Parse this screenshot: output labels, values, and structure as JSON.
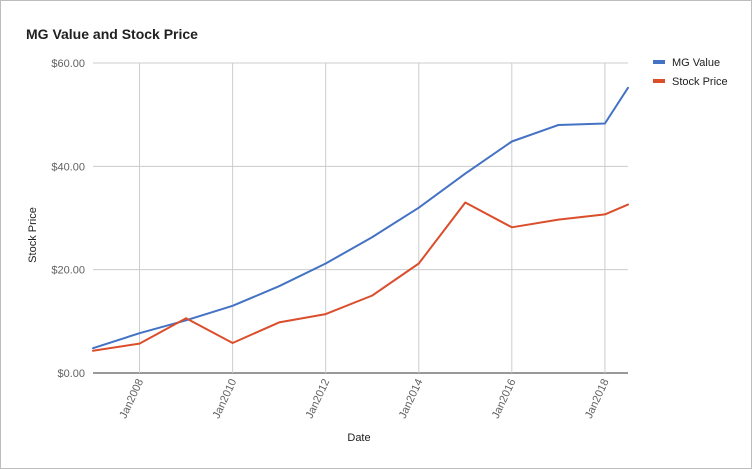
{
  "chart_data": {
    "type": "line",
    "title": "MG Value and Stock Price",
    "xlabel": "Date",
    "ylabel": "Stock Price",
    "ylim": [
      0,
      60
    ],
    "xlim": [
      "2007-01-01",
      "2018-07-01"
    ],
    "x_ticks": [
      "Jan2008",
      "Jan2010",
      "Jan2012",
      "Jan2014",
      "Jan2016",
      "Jan2018"
    ],
    "y_ticks": [
      "$0.00",
      "$20.00",
      "$40.00",
      "$60.00"
    ],
    "grid": true,
    "legend_position": "right",
    "x": [
      "2007-01-01",
      "2008-01-01",
      "2009-01-01",
      "2010-01-01",
      "2011-01-01",
      "2012-01-01",
      "2013-01-01",
      "2014-01-01",
      "2015-01-01",
      "2016-01-01",
      "2017-01-01",
      "2018-01-01",
      "2018-07-01"
    ],
    "series": [
      {
        "name": "MG Value",
        "color": "#4472c4",
        "values": [
          4.8,
          7.7,
          10.2,
          13.0,
          16.8,
          21.2,
          26.3,
          32.0,
          38.6,
          44.8,
          48.0,
          48.3,
          55.2
        ]
      },
      {
        "name": "Stock Price",
        "color": "#db4e2c",
        "values": [
          4.3,
          5.7,
          10.6,
          5.8,
          9.8,
          11.4,
          15.0,
          21.2,
          33.0,
          28.2,
          29.7,
          30.7,
          32.6
        ]
      }
    ]
  }
}
